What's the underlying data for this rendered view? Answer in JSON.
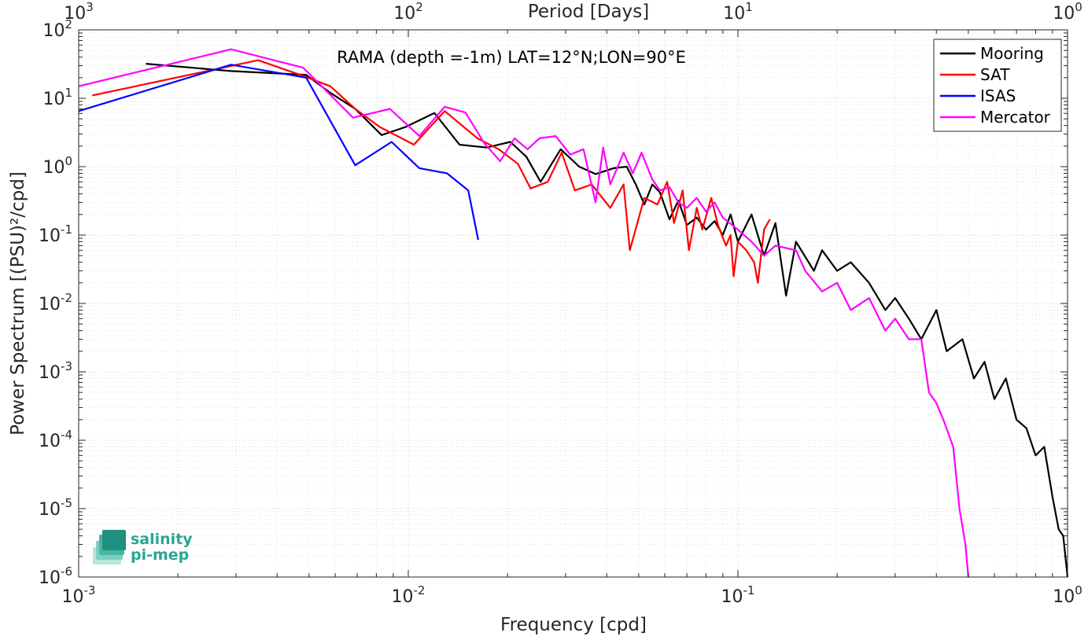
{
  "chart_data": {
    "type": "line",
    "title": "RAMA (depth =-1m) LAT=12°N;LON=90°E",
    "xlabel": "Frequency [cpd]",
    "ylabel": "Power Spectrum [(PSU)²/cpd]",
    "top_xlabel": "Period [Days]",
    "x_scale": "log",
    "y_scale": "log",
    "xlim": [
      0.001,
      1
    ],
    "ylim": [
      1e-06,
      100
    ],
    "grid": true,
    "legend_position": "top-right",
    "x_ticks": [
      {
        "base": "10",
        "exp": "-3"
      },
      {
        "base": "10",
        "exp": "-2"
      },
      {
        "base": "10",
        "exp": "-1"
      },
      {
        "base": "10",
        "exp": "0"
      }
    ],
    "top_ticks": [
      {
        "base": "10",
        "exp": "3"
      },
      {
        "base": "10",
        "exp": "2"
      },
      {
        "base": "10",
        "exp": "1"
      },
      {
        "base": "10",
        "exp": "0"
      }
    ],
    "y_ticks": [
      {
        "base": "10",
        "exp": "2"
      },
      {
        "base": "10",
        "exp": "1"
      },
      {
        "base": "10",
        "exp": "0"
      },
      {
        "base": "10",
        "exp": "-1"
      },
      {
        "base": "10",
        "exp": "-2"
      },
      {
        "base": "10",
        "exp": "-3"
      },
      {
        "base": "10",
        "exp": "-4"
      },
      {
        "base": "10",
        "exp": "-5"
      },
      {
        "base": "10",
        "exp": "-6"
      }
    ],
    "series": [
      {
        "name": "Mooring",
        "color": "#000000",
        "points": [
          [
            0.0016,
            32
          ],
          [
            0.0029,
            25
          ],
          [
            0.0049,
            22
          ],
          [
            0.0058,
            12
          ],
          [
            0.0069,
            7
          ],
          [
            0.0083,
            2.9
          ],
          [
            0.0098,
            3.8
          ],
          [
            0.012,
            6.1
          ],
          [
            0.0143,
            2.1
          ],
          [
            0.0173,
            1.9
          ],
          [
            0.0204,
            2.3
          ],
          [
            0.0228,
            1.4
          ],
          [
            0.0252,
            0.6
          ],
          [
            0.029,
            1.8
          ],
          [
            0.033,
            1.0
          ],
          [
            0.037,
            0.78
          ],
          [
            0.042,
            0.95
          ],
          [
            0.046,
            1.0
          ],
          [
            0.049,
            0.55
          ],
          [
            0.052,
            0.28
          ],
          [
            0.055,
            0.55
          ],
          [
            0.058,
            0.42
          ],
          [
            0.062,
            0.17
          ],
          [
            0.066,
            0.32
          ],
          [
            0.07,
            0.14
          ],
          [
            0.075,
            0.18
          ],
          [
            0.08,
            0.12
          ],
          [
            0.085,
            0.16
          ],
          [
            0.09,
            0.1
          ],
          [
            0.095,
            0.2
          ],
          [
            0.1,
            0.08
          ],
          [
            0.11,
            0.2
          ],
          [
            0.12,
            0.05
          ],
          [
            0.13,
            0.15
          ],
          [
            0.14,
            0.013
          ],
          [
            0.15,
            0.08
          ],
          [
            0.17,
            0.03
          ],
          [
            0.18,
            0.06
          ],
          [
            0.2,
            0.03
          ],
          [
            0.22,
            0.04
          ],
          [
            0.25,
            0.02
          ],
          [
            0.28,
            0.008
          ],
          [
            0.3,
            0.012
          ],
          [
            0.33,
            0.006
          ],
          [
            0.36,
            0.003
          ],
          [
            0.4,
            0.008
          ],
          [
            0.43,
            0.002
          ],
          [
            0.48,
            0.003
          ],
          [
            0.52,
            0.0008
          ],
          [
            0.56,
            0.0014
          ],
          [
            0.6,
            0.0004
          ],
          [
            0.65,
            0.0008
          ],
          [
            0.7,
            0.0002
          ],
          [
            0.75,
            0.00015
          ],
          [
            0.8,
            6e-05
          ],
          [
            0.85,
            8e-05
          ],
          [
            0.9,
            1.5e-05
          ],
          [
            0.94,
            5e-06
          ],
          [
            0.97,
            4e-06
          ],
          [
            1.0,
            1e-06
          ]
        ]
      },
      {
        "name": "SAT",
        "color": "#ff0000",
        "points": [
          [
            0.0011,
            11
          ],
          [
            0.0035,
            36
          ],
          [
            0.0047,
            22
          ],
          [
            0.0058,
            15
          ],
          [
            0.0069,
            7
          ],
          [
            0.0082,
            3.8
          ],
          [
            0.0104,
            2.1
          ],
          [
            0.0129,
            6.5
          ],
          [
            0.0162,
            2.6
          ],
          [
            0.0188,
            1.8
          ],
          [
            0.0215,
            1.1
          ],
          [
            0.0235,
            0.48
          ],
          [
            0.0265,
            0.6
          ],
          [
            0.0292,
            1.6
          ],
          [
            0.032,
            0.45
          ],
          [
            0.036,
            0.55
          ],
          [
            0.041,
            0.25
          ],
          [
            0.045,
            0.55
          ],
          [
            0.047,
            0.06
          ],
          [
            0.052,
            0.35
          ],
          [
            0.057,
            0.28
          ],
          [
            0.061,
            0.6
          ],
          [
            0.064,
            0.15
          ],
          [
            0.068,
            0.45
          ],
          [
            0.071,
            0.06
          ],
          [
            0.075,
            0.25
          ],
          [
            0.078,
            0.12
          ],
          [
            0.083,
            0.35
          ],
          [
            0.087,
            0.14
          ],
          [
            0.092,
            0.07
          ],
          [
            0.095,
            0.1
          ],
          [
            0.097,
            0.025
          ],
          [
            0.1,
            0.08
          ],
          [
            0.106,
            0.06
          ],
          [
            0.112,
            0.04
          ],
          [
            0.115,
            0.02
          ],
          [
            0.12,
            0.12
          ],
          [
            0.125,
            0.17
          ]
        ]
      },
      {
        "name": "ISAS",
        "color": "#0000ff",
        "points": [
          [
            0.001,
            6.5
          ],
          [
            0.0029,
            31
          ],
          [
            0.0049,
            20
          ],
          [
            0.0069,
            1.05
          ],
          [
            0.0089,
            2.3
          ],
          [
            0.0108,
            0.95
          ],
          [
            0.0131,
            0.8
          ],
          [
            0.0152,
            0.45
          ],
          [
            0.0163,
            0.085
          ]
        ]
      },
      {
        "name": "Mercator",
        "color": "#ff00ff",
        "points": [
          [
            0.001,
            15
          ],
          [
            0.0029,
            52
          ],
          [
            0.0048,
            28
          ],
          [
            0.0068,
            5.2
          ],
          [
            0.0088,
            7
          ],
          [
            0.0108,
            2.8
          ],
          [
            0.0129,
            7.5
          ],
          [
            0.0149,
            6.2
          ],
          [
            0.017,
            2.2
          ],
          [
            0.019,
            1.2
          ],
          [
            0.021,
            2.6
          ],
          [
            0.023,
            1.8
          ],
          [
            0.025,
            2.6
          ],
          [
            0.028,
            2.8
          ],
          [
            0.031,
            1.5
          ],
          [
            0.034,
            1.8
          ],
          [
            0.037,
            0.3
          ],
          [
            0.039,
            1.9
          ],
          [
            0.041,
            0.55
          ],
          [
            0.045,
            1.6
          ],
          [
            0.048,
            0.8
          ],
          [
            0.051,
            1.6
          ],
          [
            0.055,
            0.65
          ],
          [
            0.058,
            0.45
          ],
          [
            0.062,
            0.5
          ],
          [
            0.066,
            0.3
          ],
          [
            0.07,
            0.25
          ],
          [
            0.075,
            0.35
          ],
          [
            0.08,
            0.22
          ],
          [
            0.085,
            0.3
          ],
          [
            0.09,
            0.18
          ],
          [
            0.1,
            0.12
          ],
          [
            0.11,
            0.08
          ],
          [
            0.12,
            0.05
          ],
          [
            0.13,
            0.07
          ],
          [
            0.15,
            0.06
          ],
          [
            0.16,
            0.03
          ],
          [
            0.18,
            0.015
          ],
          [
            0.2,
            0.02
          ],
          [
            0.22,
            0.008
          ],
          [
            0.25,
            0.012
          ],
          [
            0.28,
            0.004
          ],
          [
            0.3,
            0.006
          ],
          [
            0.33,
            0.003
          ],
          [
            0.36,
            0.003
          ],
          [
            0.38,
            0.0005
          ],
          [
            0.4,
            0.00035
          ],
          [
            0.42,
            0.0002
          ],
          [
            0.45,
            8e-05
          ],
          [
            0.47,
            1e-05
          ],
          [
            0.49,
            3e-06
          ],
          [
            0.5,
            1e-06
          ]
        ]
      }
    ]
  },
  "logo": {
    "line1": "salinity",
    "line2": "pi-mep"
  }
}
